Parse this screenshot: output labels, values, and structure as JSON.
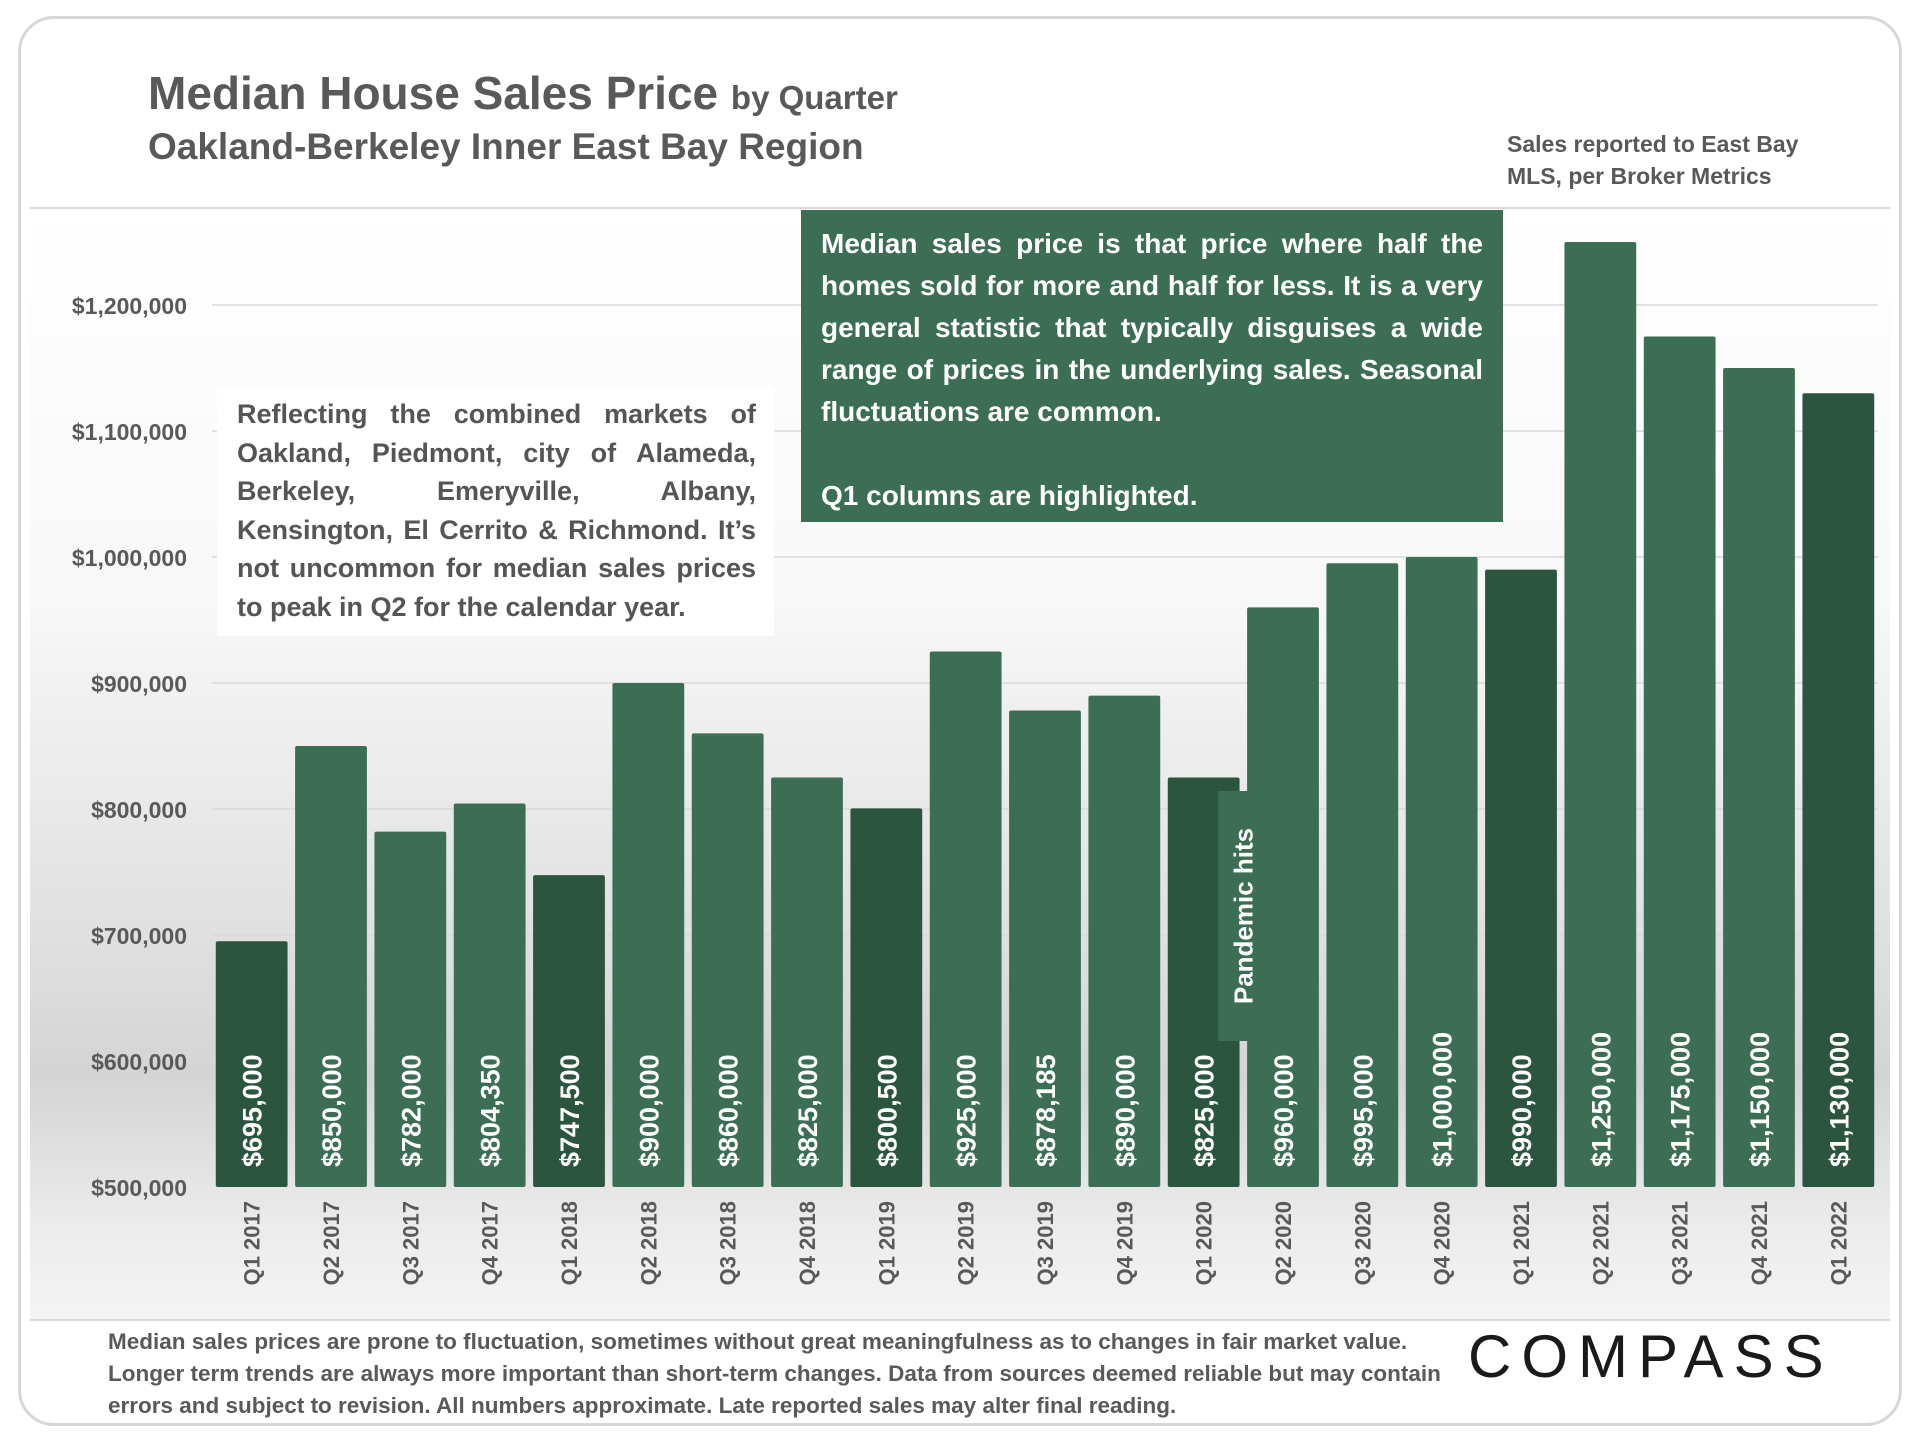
{
  "header": {
    "title": "Median House Sales Price",
    "title_suffix": "by Quarter",
    "subtitle": "Oakland-Berkeley Inner East Bay Region",
    "source_note": "Sales reported to East Bay MLS, per Broker Metrics"
  },
  "annotations": {
    "definition": "Median sales price is that price where half the homes sold for more and half for less. It is a very general statistic that typically disguises a wide range of prices in the underlying sales. Seasonal fluctuations are common.",
    "q1_note": "Q1 columns are highlighted.",
    "region": "Reflecting the combined markets of Oakland, Piedmont, city of Alameda, Berkeley, Emeryville, Albany, Kensington, El Cerrito & Richmond. It’s not uncommon for median sales prices to peak in Q2 for the calendar year.",
    "pandemic": "Pandemic hits"
  },
  "footer": {
    "note": "Median sales prices are prone to fluctuation, sometimes without great meaningfulness as to changes in fair market value. Longer term trends are always more important than short-term changes. Data from sources deemed reliable but may contain errors and subject to revision. All numbers approximate. Late reported sales may alter final reading.",
    "logo": "COMPASS"
  },
  "colors": {
    "bar": "#3c6e55",
    "bar_q1": "#2c5540",
    "axis_text": "#595959"
  },
  "chart_data": {
    "type": "bar",
    "categories": [
      "Q1 2017",
      "Q2 2017",
      "Q3 2017",
      "Q4 2017",
      "Q1 2018",
      "Q2 2018",
      "Q3 2018",
      "Q4 2018",
      "Q1 2019",
      "Q2 2019",
      "Q3 2019",
      "Q4 2019",
      "Q1 2020",
      "Q2 2020",
      "Q3 2020",
      "Q4 2020",
      "Q1 2021",
      "Q2 2021",
      "Q3 2021",
      "Q4 2021",
      "Q1 2022"
    ],
    "values": [
      695000,
      850000,
      782000,
      804350,
      747500,
      900000,
      860000,
      825000,
      800500,
      925000,
      878185,
      890000,
      825000,
      960000,
      995000,
      1000000,
      990000,
      1250000,
      1175000,
      1150000,
      1130000
    ],
    "data_labels": [
      "$695,000",
      "$850,000",
      "$782,000",
      "$804,350",
      "$747,500",
      "$900,000",
      "$860,000",
      "$825,000",
      "$800,500",
      "$925,000",
      "$878,185",
      "$890,000",
      "$825,000",
      "$960,000",
      "$995,000",
      "$1,000,000",
      "$990,000",
      "$1,250,000",
      "$1,175,000",
      "$1,150,000",
      "$1,130,000"
    ],
    "highlighted": [
      true,
      false,
      false,
      false,
      true,
      false,
      false,
      false,
      true,
      false,
      false,
      false,
      true,
      false,
      false,
      false,
      true,
      false,
      false,
      false,
      true
    ],
    "y_ticks": [
      500000,
      600000,
      700000,
      800000,
      900000,
      1000000,
      1100000,
      1200000
    ],
    "y_tick_labels": [
      "$500,000",
      "$600,000",
      "$700,000",
      "$800,000",
      "$900,000",
      "$1,000,000",
      "$1,100,000",
      "$1,200,000"
    ],
    "ylim": [
      500000,
      1260000
    ],
    "grid": true,
    "legend": "none",
    "xlabel": "",
    "ylabel": ""
  }
}
